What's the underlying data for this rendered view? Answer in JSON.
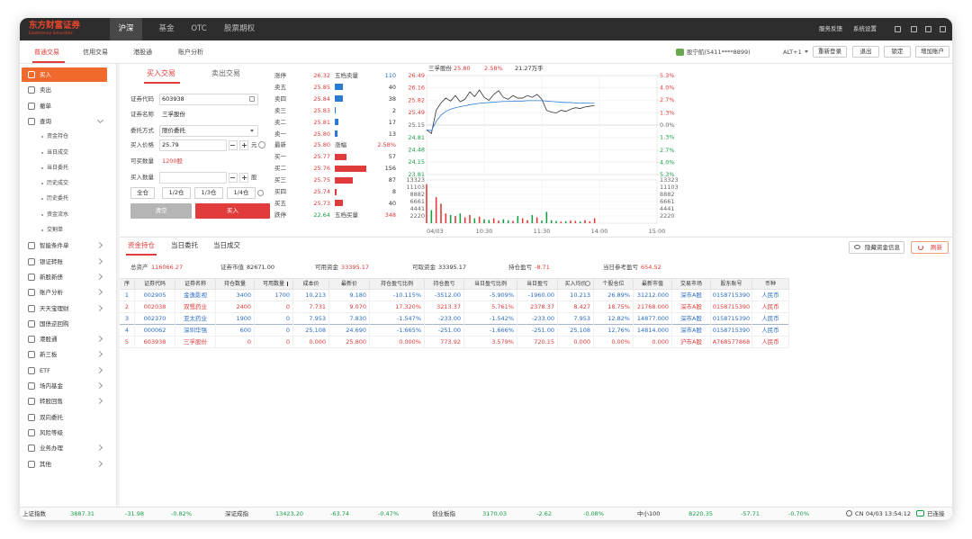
{
  "app": {
    "logo": "东方财富证券",
    "logo_sub": "Eastmoney Securities",
    "top_tabs": [
      "沪深",
      "基金",
      "OTC",
      "股票期权"
    ],
    "top_right": [
      "服务反馈",
      "系统设置"
    ],
    "sub_tabs": [
      "普通交易",
      "信用交易",
      "港股通",
      "账户分析"
    ],
    "account": "股宁航(5411****8899)",
    "hotkey": "ALT+1",
    "buttons": [
      "重新登录",
      "退出",
      "锁定",
      "增加账户"
    ]
  },
  "menu_top": [
    "买入",
    "卖出",
    "撤单",
    "查询"
  ],
  "query_items": [
    "资金持仓",
    "当日成交",
    "当日委托",
    "历史成交",
    "历史委托",
    "资金流水",
    "交割单"
  ],
  "menu_rest": [
    "智能条件单",
    "银证转账",
    "新股新债",
    "账户分析",
    "天天宝理财",
    "国债逆回购",
    "港股通",
    "新三板",
    "ETF",
    "场内基金",
    "转股回售",
    "双向委托",
    "风险等级",
    "业务办理",
    "其他"
  ],
  "order_form": {
    "tabs": [
      "买入交易",
      "卖出交易"
    ],
    "fields": [
      {
        "label": "证券代码",
        "value": "603938"
      },
      {
        "label": "证券名称",
        "value": "三孚股份"
      },
      {
        "label": "委托方式",
        "value": "限价委托"
      },
      {
        "label": "买入价格",
        "value": "25.79"
      },
      {
        "label": "可买数量",
        "value": "1200股"
      },
      {
        "label": "买入数量"
      }
    ],
    "price_unit": "元",
    "qty_unit": "股",
    "position_buttons": [
      "全仓",
      "1/2仓",
      "1/3仓",
      "1/4仓"
    ],
    "clear": "清空",
    "submit": "买入"
  },
  "order_book": {
    "top": {
      "label": "涨停",
      "price": "26.32",
      "side_label": "五档卖量",
      "side_value": "110"
    },
    "asks": [
      {
        "label": "卖五",
        "price": "25.85",
        "volume": 40
      },
      {
        "label": "卖四",
        "price": "25.84",
        "volume": 38
      },
      {
        "label": "卖三",
        "price": "25.83",
        "volume": 2
      },
      {
        "label": "卖二",
        "price": "25.81",
        "volume": 17
      },
      {
        "label": "卖一",
        "price": "25.80",
        "volume": 13
      }
    ],
    "last": {
      "label": "最新",
      "price": "25.80",
      "change_label": "涨幅",
      "change": "2.58%"
    },
    "bids": [
      {
        "label": "买一",
        "price": "25.77",
        "volume": 57
      },
      {
        "label": "买二",
        "price": "25.76",
        "volume": 156
      },
      {
        "label": "买三",
        "price": "25.75",
        "volume": 87
      },
      {
        "label": "买四",
        "price": "25.74",
        "volume": 8
      },
      {
        "label": "买五",
        "price": "25.73",
        "volume": 40
      }
    ],
    "bottom": {
      "label": "跌停",
      "price": "22.64",
      "side_label": "五档买量",
      "side_value": "348"
    }
  },
  "chart_data": {
    "type": "line",
    "stock": "三孚股份",
    "last": "25.80",
    "change": "2.58%",
    "turnover": "21.27万手",
    "x": [
      0,
      5,
      10,
      15,
      20,
      25,
      30,
      35,
      40,
      45,
      50,
      55,
      60,
      65,
      70,
      75,
      80,
      85,
      90,
      95,
      100,
      105,
      110,
      115,
      120,
      125,
      130,
      135,
      140,
      145,
      150,
      155,
      160,
      165,
      170,
      175
    ],
    "xlim": [
      0,
      240
    ],
    "xticks": [
      {
        "value": 0,
        "label": "04/03"
      },
      {
        "value": 60,
        "label": "10:30"
      },
      {
        "value": 120,
        "label": "11:30"
      },
      {
        "value": 180,
        "label": "14:00"
      },
      {
        "value": 240,
        "label": "15:00"
      }
    ],
    "ylim": [
      23.81,
      26.49
    ],
    "yticks": [
      23.81,
      24.15,
      24.48,
      24.81,
      25.15,
      25.49,
      25.82,
      26.16,
      26.49
    ],
    "y2lim": [
      -5.3,
      5.3
    ],
    "y2ticks": [
      {
        "value": -5.3,
        "label": "5.3%"
      },
      {
        "value": -4.0,
        "label": "4.0%"
      },
      {
        "value": -2.7,
        "label": "2.7%"
      },
      {
        "value": -1.3,
        "label": "1.3%"
      },
      {
        "value": 0,
        "label": "0.0%"
      },
      {
        "value": 1.3,
        "label": "1.3%"
      },
      {
        "value": 2.7,
        "label": "2.7%"
      },
      {
        "value": 4.0,
        "label": "4.0%"
      },
      {
        "value": 5.3,
        "label": "5.3%"
      }
    ],
    "series": [
      {
        "color": "#333333",
        "values": [
          25.02,
          24.92,
          25.55,
          25.75,
          25.88,
          25.8,
          25.95,
          25.78,
          25.85,
          26.05,
          25.92,
          26.1,
          25.9,
          25.82,
          25.98,
          26.08,
          25.9,
          25.85,
          25.95,
          25.88,
          25.88,
          25.95,
          25.9,
          25.98,
          25.85,
          25.55,
          25.5,
          25.48,
          25.55,
          25.52,
          25.58,
          25.62,
          25.6,
          25.64,
          25.66,
          25.68
        ]
      },
      {
        "color": "#2b7bd6",
        "values": [
          25.02,
          25.0,
          25.25,
          25.42,
          25.52,
          25.58,
          25.62,
          25.65,
          25.67,
          25.7,
          25.72,
          25.74,
          25.75,
          25.76,
          25.77,
          25.78,
          25.79,
          25.79,
          25.8,
          25.8,
          25.8,
          25.81,
          25.81,
          25.81,
          25.81,
          25.8,
          25.79,
          25.78,
          25.77,
          25.76,
          25.76,
          25.75,
          25.75,
          25.75,
          25.74,
          25.74
        ]
      }
    ],
    "volume": [
      12000,
      4000,
      8000,
      6000,
      3000,
      2500,
      2200,
      3000,
      1800,
      2500,
      1500,
      2000,
      1200,
      1000,
      1500,
      800,
      1200,
      900,
      700,
      2200,
      1500,
      900,
      2500,
      1800,
      800,
      3500,
      900,
      700,
      500,
      600,
      800,
      700,
      500,
      900,
      600,
      1500
    ],
    "vlim": [
      0,
      13323
    ],
    "vticks": [
      2220,
      4441,
      6661,
      8882,
      11103,
      13323
    ],
    "up_color": "#e03c3c",
    "down_color": "#1a9e4a",
    "grid": true
  },
  "positions": {
    "tabs": [
      "资金持仓",
      "当日委托",
      "当日成交"
    ],
    "hide": "隐藏资金信息",
    "refresh": "刷新",
    "summary": [
      {
        "label": "总资产",
        "value": "116066.27"
      },
      {
        "label": "证券市值",
        "value": "82671.00"
      },
      {
        "label": "可用资金",
        "value": "33395.17"
      },
      {
        "label": "可取资金",
        "value": "33395.17"
      },
      {
        "label": "持仓盈亏",
        "value": "-8.71"
      },
      {
        "label": "当日参考盈亏",
        "value": "654.52"
      }
    ]
  },
  "table": {
    "columns": [
      "序",
      "证券代码",
      "证券名称",
      "持仓数量",
      "可用数量",
      "成本价",
      "最新价",
      "持仓盈亏比例",
      "持仓盈亏",
      "当日盈亏比例",
      "当日盈亏",
      "买入均价",
      "个股仓位",
      "最新市值",
      "交易市场",
      "股东账号",
      "币种"
    ],
    "rows": [
      [
        "1",
        "002905",
        "金逸影视",
        "3400",
        "1700",
        "10.213",
        "9.180",
        "-10.115%",
        "-3512.00",
        "-5.909%",
        "-1960.00",
        "10.213",
        "26.89%",
        "31212.000",
        "深市A股",
        "0158715390",
        "人民币"
      ],
      [
        "2",
        "002038",
        "双鹭药业",
        "2400",
        "0",
        "7.731",
        "9.070",
        "17.320%",
        "3213.37",
        "5.761%",
        "2378.37",
        "8.427",
        "18.75%",
        "21768.000",
        "深市A股",
        "0158715390",
        "人民币"
      ],
      [
        "3",
        "002370",
        "亚太药业",
        "1900",
        "0",
        "7.953",
        "7.830",
        "-1.547%",
        "-233.00",
        "-1.542%",
        "-233.00",
        "7.953",
        "12.82%",
        "14877.000",
        "深市A股",
        "0158715390",
        "人民币"
      ],
      [
        "4",
        "000062",
        "深圳华强",
        "600",
        "0",
        "25.108",
        "24.690",
        "-1.665%",
        "-251.00",
        "-1.666%",
        "-251.00",
        "25.108",
        "12.76%",
        "14814.000",
        "深市A股",
        "0158715390",
        "人民币"
      ],
      [
        "5",
        "603938",
        "三孚股份",
        "0",
        "0",
        "0.000",
        "25.800",
        "0.000%",
        "773.92",
        "3.579%",
        "720.15",
        "0.000",
        "0.00%",
        "0.000",
        "沪市A股",
        "A768577868",
        "人民币"
      ]
    ]
  },
  "status": {
    "indices": [
      {
        "name": "上证指数",
        "value": "3887.31",
        "change": "-31.98",
        "pct": "-0.82%"
      },
      {
        "name": "深证成指",
        "value": "13423.20",
        "change": "-63.74",
        "pct": "-0.47%"
      },
      {
        "name": "创业板指",
        "value": "3170.03",
        "change": "-2.62",
        "pct": "-0.08%"
      },
      {
        "name": "中小100",
        "value": "8220.35",
        "change": "-57.71",
        "pct": "-0.70%"
      }
    ],
    "region": "CN",
    "time": "04/03 13:54:12",
    "connection": "已连接"
  }
}
